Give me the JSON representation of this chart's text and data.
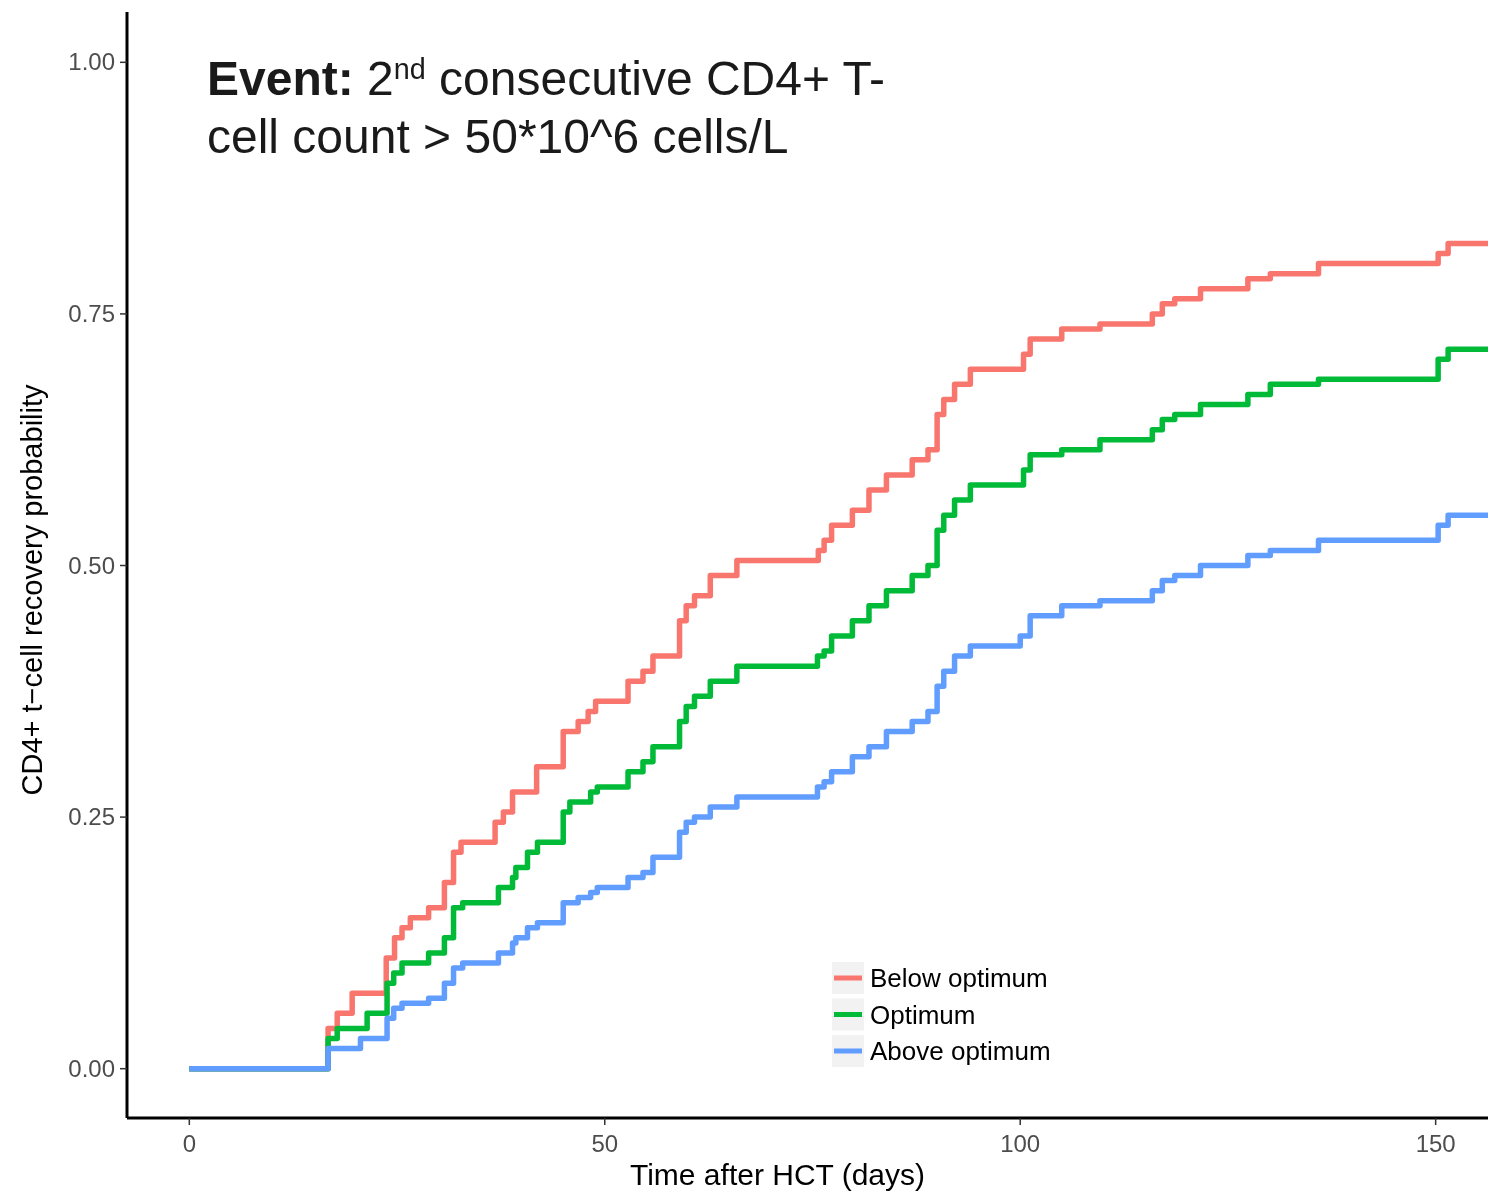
{
  "chart_data": {
    "type": "step",
    "title": "Event: 2$^{nd}$ consecutive CD4+ T-cell count > 50*10^6 cells/L",
    "xlabel": "Time after HCT (days)",
    "ylabel": "CD4+ t−cell recovery probability",
    "xlim": [
      -7.5,
      156.3
    ],
    "xticks": [
      0,
      50,
      100,
      150
    ],
    "ylim": [
      -0.049,
      1.05
    ],
    "yticks": [
      {
        "value": 0,
        "label": "0.00"
      },
      {
        "value": 0.25,
        "label": "0.25"
      },
      {
        "value": 0.5,
        "label": "0.50"
      },
      {
        "value": 0.75,
        "label": "0.75"
      },
      {
        "value": 1,
        "label": "1.00"
      }
    ],
    "grid": false,
    "legend": "bottom",
    "series": [
      {
        "name": "Below optimum",
        "color": "#f8766d",
        "x": [
          0,
          16.7,
          17.8,
          19.6,
          23.7,
          24.7,
          25.6,
          26.6,
          28.8,
          30.7,
          31.8,
          32.7,
          36.8,
          37.8,
          38.9,
          41.8,
          45,
          46.8,
          48,
          48.9,
          52.8,
          54.6,
          55.8,
          59,
          59.8,
          60.8,
          62.7,
          65.9,
          75.7,
          76.4,
          77.3,
          79.8,
          81.8,
          83.9,
          87,
          88.9,
          90,
          90.8,
          92.1,
          94,
          100.4,
          101.2,
          105,
          109.6,
          115.9,
          117.1,
          118.6,
          121.7,
          127.4,
          130.1,
          135.9,
          150.3,
          151.5,
          156.3
        ],
        "values": [
          0,
          0.04,
          0.055,
          0.075,
          0.11,
          0.13,
          0.14,
          0.15,
          0.16,
          0.185,
          0.215,
          0.225,
          0.245,
          0.255,
          0.275,
          0.3,
          0.335,
          0.345,
          0.355,
          0.365,
          0.385,
          0.395,
          0.41,
          0.445,
          0.46,
          0.47,
          0.49,
          0.505,
          0.515,
          0.525,
          0.54,
          0.555,
          0.575,
          0.59,
          0.605,
          0.615,
          0.65,
          0.665,
          0.68,
          0.695,
          0.71,
          0.725,
          0.735,
          0.74,
          0.75,
          0.76,
          0.765,
          0.775,
          0.785,
          0.79,
          0.8,
          0.81,
          0.82,
          0.82
        ]
      },
      {
        "name": "Optimum",
        "color": "#00ba38",
        "x": [
          0,
          16.7,
          17.8,
          21.4,
          23.8,
          24.6,
          25.6,
          28.8,
          30.7,
          31.8,
          32.9,
          37.2,
          38.9,
          39.3,
          40.7,
          41.9,
          45,
          45.8,
          48.3,
          49.1,
          52.8,
          54.6,
          55.8,
          59,
          59.8,
          60.8,
          62.7,
          65.9,
          75.6,
          76.4,
          77.3,
          79.8,
          81.8,
          83.9,
          87,
          88.9,
          90,
          90.8,
          92.1,
          94,
          100.4,
          101.2,
          105,
          109.6,
          115.9,
          117.1,
          118.6,
          121.7,
          127.4,
          130.1,
          135.9,
          150.3,
          151.5,
          156.3
        ],
        "values": [
          0,
          0.03,
          0.04,
          0.055,
          0.085,
          0.095,
          0.105,
          0.115,
          0.13,
          0.16,
          0.165,
          0.18,
          0.19,
          0.2,
          0.215,
          0.225,
          0.255,
          0.265,
          0.275,
          0.28,
          0.295,
          0.305,
          0.32,
          0.345,
          0.36,
          0.37,
          0.385,
          0.4,
          0.41,
          0.415,
          0.43,
          0.445,
          0.46,
          0.475,
          0.49,
          0.5,
          0.535,
          0.55,
          0.565,
          0.58,
          0.595,
          0.61,
          0.615,
          0.625,
          0.635,
          0.645,
          0.65,
          0.66,
          0.67,
          0.68,
          0.685,
          0.705,
          0.715,
          0.715
        ]
      },
      {
        "name": "Above optimum",
        "color": "#619cff",
        "x": [
          0,
          16.7,
          20.6,
          23.8,
          24.6,
          25.6,
          28.8,
          30.7,
          31.8,
          32.9,
          37.2,
          38.9,
          39.3,
          40.7,
          41.9,
          45,
          46.8,
          48.3,
          49.1,
          52.8,
          54.6,
          55.8,
          59,
          59.8,
          60.8,
          62.7,
          65.9,
          75.6,
          76.4,
          77.3,
          79.8,
          81.8,
          83.9,
          87,
          88.9,
          90,
          90.8,
          92.1,
          94,
          100,
          101.2,
          105,
          109.6,
          115.9,
          117.1,
          118.6,
          121.7,
          127.4,
          130.1,
          135.9,
          150.3,
          151.5,
          156.3
        ],
        "values": [
          0,
          0.02,
          0.03,
          0.05,
          0.06,
          0.065,
          0.07,
          0.085,
          0.1,
          0.105,
          0.115,
          0.125,
          0.13,
          0.14,
          0.145,
          0.165,
          0.17,
          0.175,
          0.18,
          0.19,
          0.195,
          0.21,
          0.235,
          0.245,
          0.25,
          0.26,
          0.27,
          0.28,
          0.285,
          0.295,
          0.31,
          0.32,
          0.335,
          0.345,
          0.355,
          0.38,
          0.395,
          0.41,
          0.42,
          0.43,
          0.45,
          0.46,
          0.465,
          0.475,
          0.485,
          0.49,
          0.5,
          0.51,
          0.515,
          0.525,
          0.54,
          0.55,
          0.55
        ]
      }
    ]
  }
}
